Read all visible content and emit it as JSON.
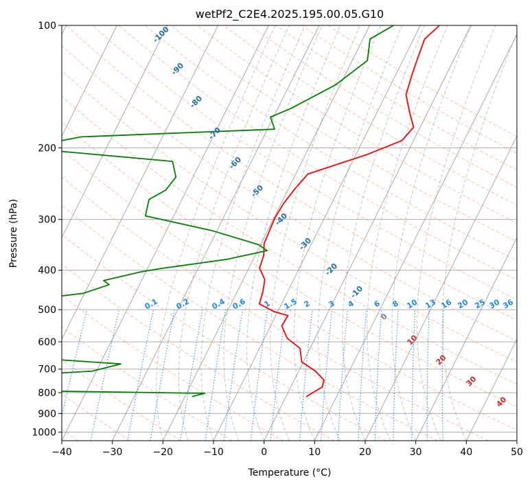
{
  "chart_data": {
    "type": "skew-t",
    "title": "wetPf2_C2E4.2025.195.00.05.G10",
    "xlabel": "Temperature (°C)",
    "ylabel": "Pressure (hPa)",
    "xlim": [
      -40,
      50
    ],
    "ylim": [
      1050,
      100
    ],
    "y_scale": "log",
    "x_ticks": [
      "−40",
      "−30",
      "−20",
      "−10",
      "0",
      "10",
      "20",
      "30",
      "40",
      "50"
    ],
    "y_ticks": [
      "100",
      "200",
      "300",
      "400",
      "500",
      "600",
      "700",
      "800",
      "900",
      "1000"
    ],
    "grid": true,
    "series": [
      {
        "color": "#ff0000",
        "points": [
          [
            -6.2,
            100
          ],
          [
            -7.8,
            108
          ],
          [
            -7.3,
            120
          ],
          [
            -6.8,
            132
          ],
          [
            -6.0,
            148
          ],
          [
            -3.5,
            164
          ],
          [
            -1.3,
            178
          ],
          [
            -2.3,
            192
          ],
          [
            -7.9,
            208
          ],
          [
            -17.6,
            232
          ],
          [
            -18.7,
            252
          ],
          [
            -19.5,
            274
          ],
          [
            -19.8,
            297
          ],
          [
            -19.6,
            320
          ],
          [
            -19.4,
            344
          ],
          [
            -18.3,
            368
          ],
          [
            -17.9,
            395
          ],
          [
            -15.7,
            422
          ],
          [
            -14.9,
            452
          ],
          [
            -14.4,
            484
          ],
          [
            -10.8,
            505
          ],
          [
            -7.6,
            517
          ],
          [
            -7.8,
            548
          ],
          [
            -5.5,
            588
          ],
          [
            -2.0,
            622
          ],
          [
            -0.3,
            672
          ],
          [
            3.3,
            708
          ],
          [
            5.9,
            745
          ],
          [
            6.2,
            775
          ],
          [
            4.6,
            806
          ],
          [
            4.0,
            818
          ]
        ]
      },
      {
        "color": "#008000",
        "points": [
          [
            -15.3,
            100
          ],
          [
            -18.6,
            108
          ],
          [
            -17.0,
            122
          ],
          [
            -20.9,
            140
          ],
          [
            -27.4,
            160
          ],
          [
            -30.6,
            168
          ],
          [
            -28.6,
            180
          ],
          [
            -66.1,
            188
          ],
          [
            -74.7,
            198
          ],
          [
            -68.8,
            204
          ],
          [
            -45.6,
            216
          ],
          [
            -43.4,
            236
          ],
          [
            -44.1,
            254
          ],
          [
            -46.5,
            268
          ],
          [
            -45.6,
            294
          ],
          [
            -30.8,
            320
          ],
          [
            -20.4,
            346
          ],
          [
            -18.1,
            358
          ],
          [
            -25.2,
            376
          ],
          [
            -37.3,
            396
          ],
          [
            -41.1,
            404
          ],
          [
            -47.5,
            424
          ],
          [
            -46.0,
            434
          ],
          [
            -50.3,
            456
          ],
          [
            -69.2,
            488
          ],
          [
            -93.2,
            511
          ],
          [
            -65.6,
            533
          ],
          [
            -66.5,
            550
          ],
          [
            -69.4,
            566
          ],
          [
            -74.9,
            578
          ],
          [
            -77.1,
            603
          ],
          [
            -65.0,
            638
          ],
          [
            -47.6,
            665
          ],
          [
            -35.9,
            680
          ],
          [
            -40.8,
            708
          ],
          [
            -58.3,
            730
          ],
          [
            -66.3,
            749
          ],
          [
            -58.6,
            762
          ],
          [
            -46.7,
            793
          ],
          [
            -16.4,
            803
          ],
          [
            -18.6,
            818
          ]
        ]
      }
    ],
    "isotherm_labels": [
      "-100",
      "-90",
      "-80",
      "-70",
      "-60",
      "-50",
      "-40",
      "-30",
      "-20",
      "-10"
    ],
    "mixing_ratio_labels": [
      "0.1",
      "0.2",
      "0.4",
      "0.6",
      "1",
      "1.5",
      "2",
      "3",
      "4",
      "6",
      "8",
      "10",
      "13",
      "16",
      "20",
      "25",
      "30",
      "36"
    ],
    "moist_labels": [
      "0",
      "10",
      "20",
      "30",
      "40"
    ]
  },
  "colors": {
    "temperature": "#ff0000",
    "dewpoint": "#008000",
    "mixing_ratio": "#1e88e5",
    "isotherm_label": "#1f6fa8",
    "moist_adiabat": "#7a9a7a",
    "moist_label_red": "#d62728",
    "dry_adiabat": "#ff9977",
    "grid": "#a0a0a0"
  }
}
